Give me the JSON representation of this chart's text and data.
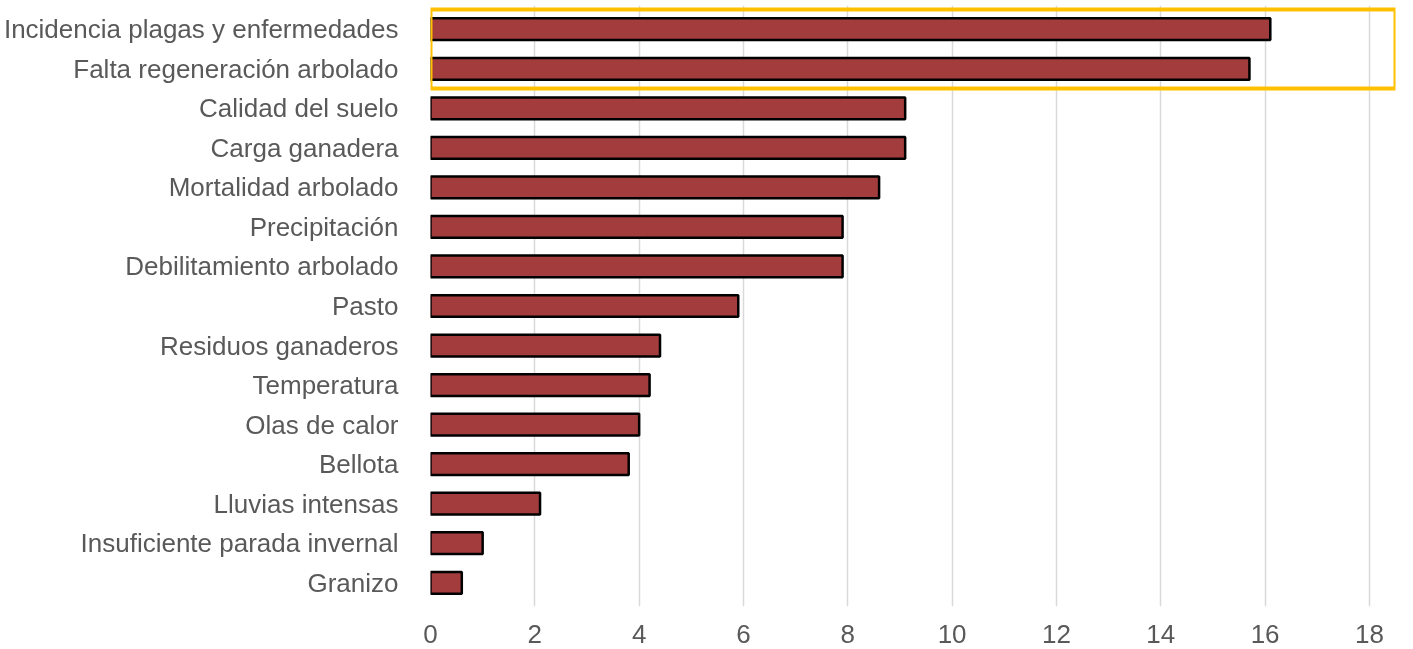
{
  "chart_data": {
    "type": "bar",
    "orientation": "horizontal",
    "categories": [
      "Incidencia plagas y enfermedades",
      "Falta regeneración arbolado",
      "Calidad del suelo",
      "Carga ganadera",
      "Mortalidad arbolado",
      "Precipitación",
      "Debilitamiento arbolado",
      "Pasto",
      "Residuos ganaderos",
      "Temperatura",
      "Olas de calor",
      "Bellota",
      "Lluvias intensas",
      "Insuficiente parada invernal",
      "Granizo"
    ],
    "values": [
      16.1,
      15.7,
      9.1,
      9.1,
      8.6,
      7.9,
      7.9,
      5.9,
      4.4,
      4.2,
      4.0,
      3.8,
      2.1,
      1.0,
      0.6
    ],
    "color": "#a33c3c",
    "xlim": [
      0,
      18.5
    ],
    "xticks": [
      0,
      2,
      4,
      6,
      8,
      10,
      12,
      14,
      16,
      18
    ],
    "grid": "x"
  }
}
